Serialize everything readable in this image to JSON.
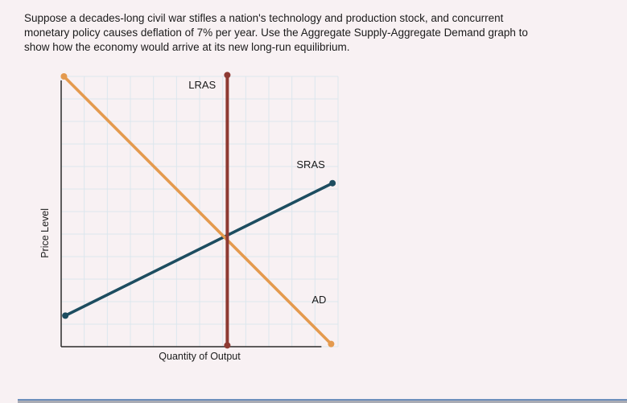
{
  "question": {
    "lines": [
      "Suppose a decades-long civil war stifles a nation's technology and production stock, and concurrent",
      "monetary policy causes deflation of 7% per year. Use the Aggregate Supply-Aggregate Demand graph to",
      "show how the economy would arrive at its new long-run equilibrium."
    ]
  },
  "chart_data": {
    "type": "line",
    "title": "",
    "xlabel": "Quantity of Output",
    "ylabel": "Price Level",
    "x_range": [
      0,
      100
    ],
    "y_range": [
      0,
      100
    ],
    "tick_labels": "none",
    "grid": true,
    "grid_divisions": 12,
    "grid_color": "#dbe6ee",
    "axis_color": "#2b2b2b",
    "legend": "inline-labels",
    "series": [
      {
        "name": "SRAS",
        "description": "short-run aggregate supply, upward sloping",
        "color": "#1d4d60",
        "width": 3.6,
        "points": [
          [
            1.5,
            11.5
          ],
          [
            98,
            60.5
          ]
        ],
        "label_x": 85,
        "label_y": 66
      },
      {
        "name": "AD",
        "description": "aggregate demand, downward sloping",
        "color": "#e49a4e",
        "width": 3.6,
        "points": [
          [
            1,
            100
          ],
          [
            97.5,
            1
          ]
        ],
        "label_x": 90.5,
        "label_y": 16
      },
      {
        "name": "LRAS",
        "description": "long-run aggregate supply, vertical",
        "color": "#8e3a33",
        "width": 4,
        "points": [
          [
            60,
            100.5
          ],
          [
            60,
            0.5
          ]
        ],
        "label_x": 46,
        "label_y": 95.5
      }
    ]
  }
}
